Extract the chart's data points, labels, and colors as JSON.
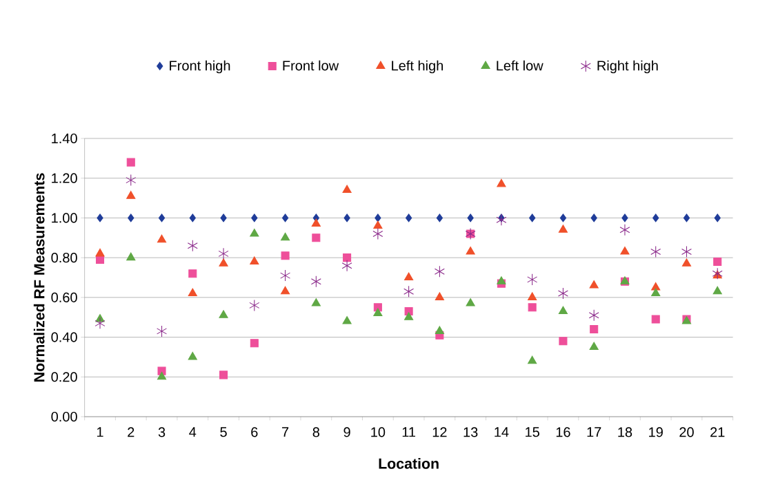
{
  "chart_data": {
    "type": "scatter",
    "xlabel": "Location",
    "ylabel": "Normalized RF Measurements",
    "categories": [
      "1",
      "2",
      "3",
      "4",
      "5",
      "6",
      "7",
      "8",
      "9",
      "10",
      "11",
      "12",
      "13",
      "14",
      "15",
      "16",
      "17",
      "18",
      "19",
      "20",
      "21"
    ],
    "series": [
      {
        "name": "Front high",
        "color": "#1f3c99",
        "marker": "diamond",
        "values": [
          1.0,
          1.0,
          1.0,
          1.0,
          1.0,
          1.0,
          1.0,
          1.0,
          1.0,
          1.0,
          1.0,
          1.0,
          1.0,
          1.0,
          1.0,
          1.0,
          1.0,
          1.0,
          1.0,
          1.0,
          1.0
        ]
      },
      {
        "name": "Front low",
        "color": "#ee4f9a",
        "marker": "square",
        "values": [
          0.79,
          1.28,
          0.23,
          0.72,
          0.21,
          0.37,
          0.81,
          0.9,
          0.8,
          0.55,
          0.53,
          0.41,
          0.92,
          0.67,
          0.55,
          0.38,
          0.44,
          0.68,
          0.49,
          0.49,
          0.78
        ]
      },
      {
        "name": "Left high",
        "color": "#f0502a",
        "marker": "triangle",
        "values": [
          0.82,
          1.11,
          0.89,
          0.62,
          0.77,
          0.78,
          0.63,
          0.97,
          1.14,
          0.96,
          0.7,
          0.6,
          0.83,
          1.17,
          0.6,
          0.94,
          0.66,
          0.83,
          0.65,
          0.77,
          0.71
        ]
      },
      {
        "name": "Left low",
        "color": "#5fa845",
        "marker": "triangle",
        "values": [
          0.49,
          0.8,
          0.2,
          0.3,
          0.51,
          0.92,
          0.9,
          0.57,
          0.48,
          0.52,
          0.5,
          0.43,
          0.57,
          0.68,
          0.28,
          0.53,
          0.35,
          0.68,
          0.62,
          0.48,
          0.63
        ]
      },
      {
        "name": "Right high",
        "color": "#8b2a8b",
        "marker": "cross",
        "values": [
          0.47,
          1.19,
          0.43,
          0.86,
          0.82,
          0.56,
          0.71,
          0.68,
          0.76,
          0.92,
          0.63,
          0.73,
          0.92,
          0.99,
          0.69,
          0.62,
          0.51,
          0.94,
          0.83,
          0.83,
          0.72
        ]
      }
    ],
    "ylim": [
      0,
      1.4
    ],
    "yticks": [
      {
        "value": 0,
        "label": "0.00"
      },
      {
        "value": 0.2,
        "label": "0.20"
      },
      {
        "value": 0.4,
        "label": "0.40"
      },
      {
        "value": 0.6,
        "label": "0.60"
      },
      {
        "value": 0.8,
        "label": "0.80"
      },
      {
        "value": 1.0,
        "label": "1.00"
      },
      {
        "value": 1.2,
        "label": "1.20"
      },
      {
        "value": 1.4,
        "label": "1.40"
      }
    ],
    "grid": "y",
    "legend": "top"
  }
}
